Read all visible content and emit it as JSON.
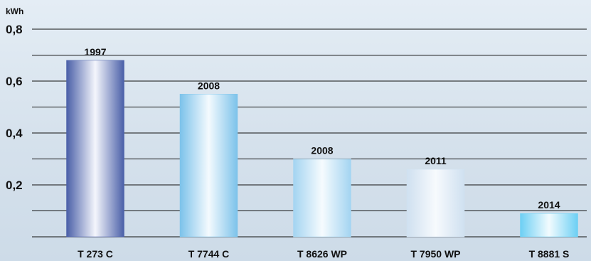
{
  "chart_data": {
    "type": "bar",
    "title": "",
    "xlabel": "",
    "ylabel": "",
    "unit": "kWh",
    "categories": [
      "T 273 C",
      "T 7744 C",
      "T 8626 WP",
      "T 7950 WP",
      "T 8881 S"
    ],
    "values": [
      0.68,
      0.55,
      0.3,
      0.26,
      0.09
    ],
    "data_labels": [
      "1997",
      "2008",
      "2008",
      "2011",
      "2014"
    ],
    "ylim": [
      0,
      0.8
    ],
    "yticks": [
      0.2,
      0.4,
      0.6,
      0.8
    ],
    "ytick_labels": [
      "0,2",
      "0,4",
      "0,6",
      "0,8"
    ],
    "minor_gridlines": [
      0.1,
      0.3,
      0.5,
      0.7
    ],
    "grid": true,
    "legend": "none",
    "colors": {
      "bar1_edge": "#4f63aa",
      "bar2_edge": "#7ec4ea",
      "bar3_edge": "#a7d6f2",
      "bar4_edge": "#cfe1f1",
      "bar5_edge": "#6fd0f4",
      "grid": "#111111"
    }
  }
}
